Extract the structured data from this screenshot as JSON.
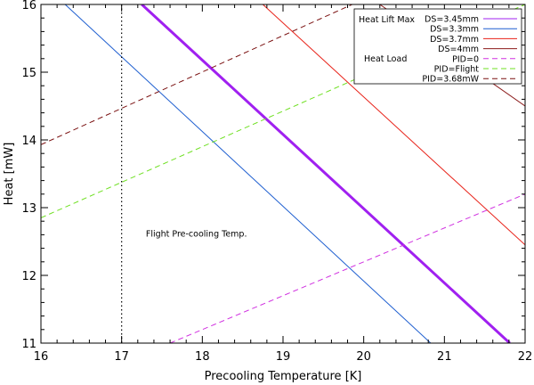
{
  "chart_data": {
    "type": "line",
    "title": "",
    "xlabel": "Precooling Temperature [K]",
    "ylabel": "Heat [mW]",
    "xlim": [
      16,
      22
    ],
    "ylim": [
      11,
      16
    ],
    "xticks": [
      "16",
      "17",
      "18",
      "19",
      "20",
      "21",
      "22"
    ],
    "yticks": [
      "11",
      "12",
      "13",
      "14",
      "15",
      "16"
    ],
    "grid": false,
    "legend_position": "top-right",
    "legend_headers": {
      "heat_lift": "Heat Lift Max",
      "heat_load": "Heat Load"
    },
    "series": [
      {
        "name": "DS=3.45mm",
        "group": "heat_lift",
        "style": "solid",
        "color": "#a020f0",
        "width": 3,
        "x": [
          17.25,
          21.81
        ],
        "y": [
          16.0,
          11.0
        ]
      },
      {
        "name": "DS=3.3mm",
        "group": "heat_lift",
        "style": "solid",
        "color": "#1f5fd0",
        "width": 1,
        "x": [
          16.3,
          20.83
        ],
        "y": [
          16.0,
          11.0
        ]
      },
      {
        "name": "DS=3.7mm",
        "group": "heat_lift",
        "style": "solid",
        "color": "#e8231a",
        "width": 1,
        "x": [
          18.75,
          22.0
        ],
        "y": [
          16.0,
          12.45
        ]
      },
      {
        "name": "DS=4mm",
        "group": "heat_lift",
        "style": "solid",
        "color": "#8b1a1a",
        "width": 1,
        "x": [
          20.2,
          22.0
        ],
        "y": [
          16.0,
          14.5
        ]
      },
      {
        "name": "PID=0",
        "group": "heat_load",
        "style": "dashed",
        "color": "#d030e0",
        "width": 1,
        "x": [
          17.6,
          22.0
        ],
        "y": [
          11.0,
          13.2
        ]
      },
      {
        "name": "PID=Flight",
        "group": "heat_load",
        "style": "dashed",
        "color": "#6fe022",
        "width": 1,
        "x": [
          16.0,
          22.0
        ],
        "y": [
          12.85,
          16.0
        ]
      },
      {
        "name": "PID=3.68mW",
        "group": "heat_load",
        "style": "dashed",
        "color": "#7a1010",
        "width": 1,
        "x": [
          16.0,
          22.0
        ],
        "y": [
          13.93,
          17.15
        ]
      }
    ],
    "vline": {
      "x": 17.0,
      "style": "dotted",
      "color": "#000000"
    },
    "annotations": [
      {
        "text": "Flight Pre-cooling Temp.",
        "x": 17.3,
        "y": 12.57
      }
    ]
  }
}
